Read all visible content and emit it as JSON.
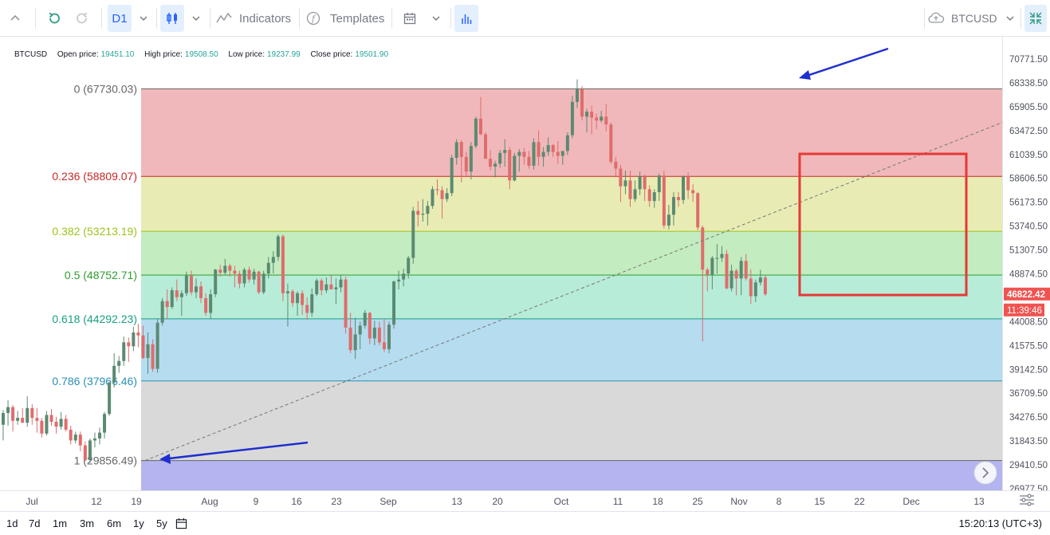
{
  "toolbar": {
    "interval": "D1",
    "indicators_label": "Indicators",
    "templates_label": "Templates",
    "symbol": "BTCUSD"
  },
  "legend": {
    "symbol": "BTCUSD",
    "open_label": "Open price:",
    "open_value": "19451.10",
    "high_label": "High price:",
    "high_value": "19508.50",
    "low_label": "Low price:",
    "low_value": "19237.99",
    "close_label": "Close price:",
    "close_value": "19501.90"
  },
  "colors": {
    "up": "#26a69a",
    "down": "#ef5350",
    "fib_0_236": "#f0b8ba",
    "fib_236_382": "#e8ecb4",
    "fib_382_5": "#c3ecc0",
    "fib_5_618": "#b7ecd8",
    "fib_618_786": "#b5dcef",
    "fib_786_1": "#d9d9d9",
    "fib_below_1": "#b4b4f0",
    "marker": "#e53935",
    "arrow": "#1f2fcf"
  },
  "fib_levels": [
    {
      "label": "0 (67730.03)",
      "price": 67730.03,
      "color": "#666666"
    },
    {
      "label": "0.236 (58809.07)",
      "price": 58809.07,
      "color": "#c62828"
    },
    {
      "label": "0.382 (53213.19)",
      "price": 53213.19,
      "color": "#9ec21a"
    },
    {
      "label": "0.5 (48752.71)",
      "price": 48752.71,
      "color": "#2e9e2e"
    },
    {
      "label": "0.618 (44292.23)",
      "price": 44292.23,
      "color": "#1aa083"
    },
    {
      "label": "0.786 (37966.46)",
      "price": 37966.46,
      "color": "#2a8fb5"
    },
    {
      "label": "1 (29856.49)",
      "price": 29856.49,
      "color": "#666666"
    }
  ],
  "price_axis": {
    "ticks": [
      "70771.50",
      "68338.50",
      "65905.50",
      "63472.50",
      "61039.50",
      "58606.50",
      "56173.50",
      "53740.50",
      "51307.50",
      "48874.50",
      "44008.50",
      "41575.50",
      "39142.50",
      "36709.50",
      "34276.50",
      "31843.50",
      "29410.50",
      "26977.50"
    ],
    "last_price": "46822.42",
    "countdown": "11:39:46"
  },
  "time_axis": {
    "labels": [
      "Jul",
      "12",
      "19",
      "Aug",
      "9",
      "16",
      "23",
      "Sep",
      "13",
      "20",
      "Oct",
      "11",
      "18",
      "25",
      "Nov",
      "8",
      "15",
      "22",
      "Dec",
      "13"
    ]
  },
  "chart_data": {
    "type": "candlestick",
    "symbol": "BTCUSD",
    "interval": "D1",
    "ylim": [
      26977.5,
      71500
    ],
    "candles": [
      [
        33500,
        35000,
        31900,
        34700
      ],
      [
        34700,
        36000,
        33400,
        35300
      ],
      [
        35300,
        35500,
        32800,
        33900
      ],
      [
        33900,
        34900,
        33500,
        34200
      ],
      [
        34200,
        35200,
        33700,
        33700
      ],
      [
        33700,
        36400,
        33300,
        35200
      ],
      [
        35200,
        35600,
        33500,
        34200
      ],
      [
        34200,
        35200,
        32700,
        33900
      ],
      [
        33900,
        34200,
        32200,
        32600
      ],
      [
        32600,
        34900,
        32400,
        34500
      ],
      [
        34500,
        35100,
        33400,
        33800
      ],
      [
        33800,
        34300,
        32600,
        33300
      ],
      [
        33300,
        34800,
        33000,
        34100
      ],
      [
        34100,
        34500,
        32800,
        33000
      ],
      [
        33000,
        33400,
        31500,
        31900
      ],
      [
        31900,
        32800,
        31600,
        32500
      ],
      [
        32500,
        32800,
        30800,
        31400
      ],
      [
        31400,
        31800,
        29800,
        29900
      ],
      [
        29900,
        32100,
        29600,
        31900
      ],
      [
        31900,
        32700,
        31200,
        32100
      ],
      [
        32100,
        33200,
        31500,
        32700
      ],
      [
        32700,
        34800,
        32100,
        34600
      ],
      [
        34600,
        37900,
        34400,
        37800
      ],
      [
        37800,
        40800,
        37300,
        39500
      ],
      [
        39500,
        40500,
        38800,
        40000
      ],
      [
        40000,
        42500,
        39500,
        41900
      ],
      [
        41900,
        42400,
        39900,
        41500
      ],
      [
        41500,
        43500,
        41000,
        42900
      ],
      [
        42900,
        43800,
        41400,
        42600
      ],
      [
        42600,
        43600,
        40200,
        40300
      ],
      [
        40300,
        42900,
        38700,
        41700
      ],
      [
        41700,
        42200,
        38900,
        39200
      ],
      [
        39200,
        44300,
        38800,
        43900
      ],
      [
        43900,
        46400,
        43600,
        46100
      ],
      [
        46100,
        47300,
        44300,
        45500
      ],
      [
        45500,
        47500,
        45300,
        47200
      ],
      [
        47200,
        48300,
        46100,
        46500
      ],
      [
        46500,
        47200,
        44600,
        46900
      ],
      [
        46900,
        49100,
        46600,
        48700
      ],
      [
        48700,
        49200,
        46700,
        47000
      ],
      [
        47000,
        48400,
        46400,
        47600
      ],
      [
        47600,
        48100,
        45900,
        46400
      ],
      [
        46400,
        46900,
        44600,
        44900
      ],
      [
        44900,
        47300,
        44300,
        46800
      ],
      [
        46800,
        49400,
        46500,
        49300
      ],
      [
        49300,
        49800,
        48600,
        49000
      ],
      [
        49000,
        50400,
        48800,
        49700
      ],
      [
        49700,
        49900,
        48600,
        49200
      ],
      [
        49200,
        49700,
        47500,
        48900
      ],
      [
        48900,
        49200,
        47400,
        47900
      ],
      [
        47900,
        49500,
        47500,
        49300
      ],
      [
        49300,
        49600,
        48000,
        48300
      ],
      [
        48300,
        49400,
        47800,
        49100
      ],
      [
        49100,
        49200,
        46800,
        47000
      ],
      [
        47000,
        49200,
        46800,
        48900
      ],
      [
        48900,
        50600,
        48400,
        50000
      ],
      [
        50000,
        51200,
        48900,
        50600
      ],
      [
        50600,
        52900,
        50200,
        52700
      ],
      [
        52700,
        52900,
        46100,
        46900
      ],
      [
        46900,
        47900,
        43500,
        47100
      ],
      [
        47100,
        47300,
        45500,
        45900
      ],
      [
        45900,
        47100,
        44600,
        46900
      ],
      [
        46900,
        47200,
        44700,
        45700
      ],
      [
        45700,
        46500,
        44200,
        44900
      ],
      [
        44900,
        47400,
        44500,
        46800
      ],
      [
        46800,
        48400,
        46600,
        48200
      ],
      [
        48200,
        48400,
        46700,
        47200
      ],
      [
        47200,
        48500,
        46900,
        47800
      ],
      [
        47800,
        48700,
        47300,
        47300
      ],
      [
        47300,
        48400,
        45800,
        47500
      ],
      [
        47500,
        48800,
        47000,
        48300
      ],
      [
        48300,
        48600,
        42800,
        43400
      ],
      [
        43400,
        44900,
        40800,
        41100
      ],
      [
        41100,
        44400,
        40200,
        42700
      ],
      [
        42700,
        44000,
        41200,
        43600
      ],
      [
        43600,
        45200,
        43300,
        44900
      ],
      [
        44900,
        45000,
        41700,
        42300
      ],
      [
        42300,
        44100,
        41600,
        43400
      ],
      [
        43400,
        44000,
        41600,
        41900
      ],
      [
        41900,
        44300,
        40900,
        41200
      ],
      [
        41200,
        44000,
        40800,
        43700
      ],
      [
        43700,
        48200,
        43300,
        48100
      ],
      [
        48100,
        49200,
        47300,
        48300
      ],
      [
        48300,
        49400,
        47600,
        48900
      ],
      [
        48900,
        50700,
        48400,
        50500
      ],
      [
        50500,
        55700,
        49900,
        55300
      ],
      [
        55300,
        56300,
        53700,
        54900
      ],
      [
        54900,
        56500,
        54200,
        55000
      ],
      [
        55000,
        56300,
        53800,
        55800
      ],
      [
        55800,
        57800,
        55500,
        57500
      ],
      [
        57500,
        58500,
        56900,
        57400
      ],
      [
        57400,
        57800,
        54500,
        56500
      ],
      [
        56500,
        57600,
        56200,
        57100
      ],
      [
        57100,
        61000,
        56800,
        60700
      ],
      [
        60700,
        62600,
        60000,
        62300
      ],
      [
        62300,
        62500,
        58200,
        60800
      ],
      [
        60800,
        61300,
        58900,
        59300
      ],
      [
        59300,
        62300,
        58500,
        61900
      ],
      [
        61900,
        64900,
        61700,
        64700
      ],
      [
        64700,
        66900,
        63000,
        63100
      ],
      [
        63100,
        63300,
        60700,
        60600
      ],
      [
        60600,
        61500,
        59400,
        59800
      ],
      [
        59800,
        60400,
        58700,
        60100
      ],
      [
        60100,
        61500,
        59700,
        61200
      ],
      [
        61200,
        62600,
        59800,
        61500
      ],
      [
        61500,
        61800,
        57500,
        58400
      ],
      [
        58400,
        61200,
        58300,
        60900
      ],
      [
        60900,
        61600,
        59300,
        61300
      ],
      [
        61300,
        61700,
        60000,
        60800
      ],
      [
        60800,
        61400,
        59600,
        59900
      ],
      [
        59900,
        62700,
        59500,
        62300
      ],
      [
        62300,
        63500,
        59900,
        60800
      ],
      [
        60800,
        61800,
        59800,
        61300
      ],
      [
        61300,
        62800,
        60900,
        62000
      ],
      [
        62000,
        62100,
        60800,
        61300
      ],
      [
        61300,
        62400,
        60100,
        60900
      ],
      [
        60900,
        61100,
        60000,
        61400
      ],
      [
        61400,
        63300,
        61000,
        63000
      ],
      [
        63000,
        67000,
        62700,
        66400
      ],
      [
        66400,
        68700,
        65800,
        67700
      ],
      [
        67700,
        68000,
        64500,
        64900
      ],
      [
        64900,
        65700,
        63300,
        65400
      ],
      [
        65400,
        66000,
        63100,
        64800
      ],
      [
        64800,
        65200,
        63600,
        64500
      ],
      [
        64500,
        65500,
        64300,
        64900
      ],
      [
        64900,
        66200,
        63400,
        64100
      ],
      [
        64100,
        64300,
        60100,
        60300
      ],
      [
        60300,
        60800,
        58700,
        59600
      ],
      [
        59600,
        60000,
        56200,
        57800
      ],
      [
        57800,
        59400,
        57000,
        58400
      ],
      [
        58400,
        59400,
        55700,
        56500
      ],
      [
        56500,
        58400,
        56200,
        57500
      ],
      [
        57500,
        59300,
        56900,
        58800
      ],
      [
        58800,
        59000,
        56300,
        57500
      ],
      [
        57500,
        57900,
        55700,
        56300
      ],
      [
        56300,
        57500,
        55600,
        57200
      ],
      [
        57200,
        59100,
        56300,
        58900
      ],
      [
        58900,
        59400,
        53500,
        53800
      ],
      [
        53800,
        55900,
        53400,
        54900
      ],
      [
        54900,
        57200,
        53800,
        56700
      ],
      [
        56700,
        57200,
        55700,
        56400
      ],
      [
        56400,
        58900,
        56000,
        58800
      ],
      [
        58800,
        59200,
        56500,
        57400
      ],
      [
        57400,
        58000,
        56200,
        57100
      ],
      [
        57100,
        57200,
        53300,
        53600
      ],
      [
        53600,
        53800,
        42000,
        49300
      ],
      [
        49300,
        49500,
        47100,
        48800
      ],
      [
        48800,
        50700,
        47300,
        50500
      ],
      [
        50500,
        51900,
        48900,
        50500
      ],
      [
        50500,
        51700,
        50100,
        50900
      ],
      [
        50900,
        51300,
        47300,
        47400
      ],
      [
        47400,
        49800,
        47100,
        49200
      ],
      [
        49200,
        49400,
        46700,
        48400
      ],
      [
        48400,
        50600,
        46700,
        50200
      ],
      [
        50200,
        50900,
        48200,
        48400
      ],
      [
        48400,
        49300,
        45800,
        46600
      ],
      [
        46600,
        48300,
        46000,
        48000
      ],
      [
        48000,
        49300,
        47700,
        48500
      ],
      [
        48500,
        48700,
        46600,
        46800
      ]
    ]
  }
}
